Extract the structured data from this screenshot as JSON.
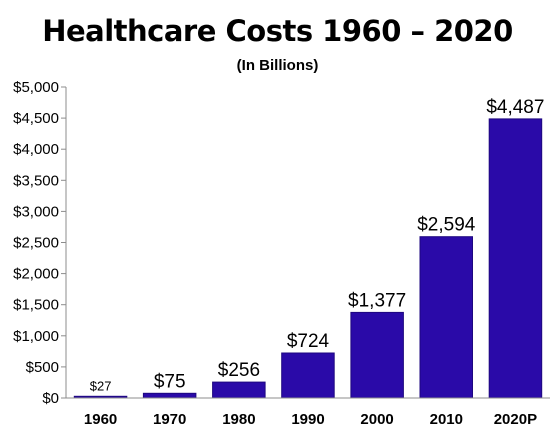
{
  "chart_data": {
    "type": "bar",
    "title": "Healthcare Costs 1960 – 2020",
    "subtitle": "(In Billions)",
    "xlabel": "",
    "ylabel": "",
    "categories": [
      "1960",
      "1970",
      "1980",
      "1990",
      "2000",
      "2010",
      "2020P"
    ],
    "values": [
      27,
      75,
      256,
      724,
      1377,
      2594,
      4487
    ],
    "data_labels": [
      "$27",
      "$75",
      "$256",
      "$724",
      "$1,377",
      "$2,594",
      "$4,487"
    ],
    "ylim": [
      0,
      5000
    ],
    "yticks": [
      0,
      500,
      1000,
      1500,
      2000,
      2500,
      3000,
      3500,
      4000,
      4500,
      5000
    ],
    "ytick_labels": [
      "$0",
      "$500",
      "$1,000",
      "$1,500",
      "$2,000",
      "$2,500",
      "$3,000",
      "$3,500",
      "$4,000",
      "$4,500",
      "$5,000"
    ],
    "grid": false,
    "legend": "none",
    "bar_color": "#2A0AA8",
    "border_color": "#1E0780"
  }
}
